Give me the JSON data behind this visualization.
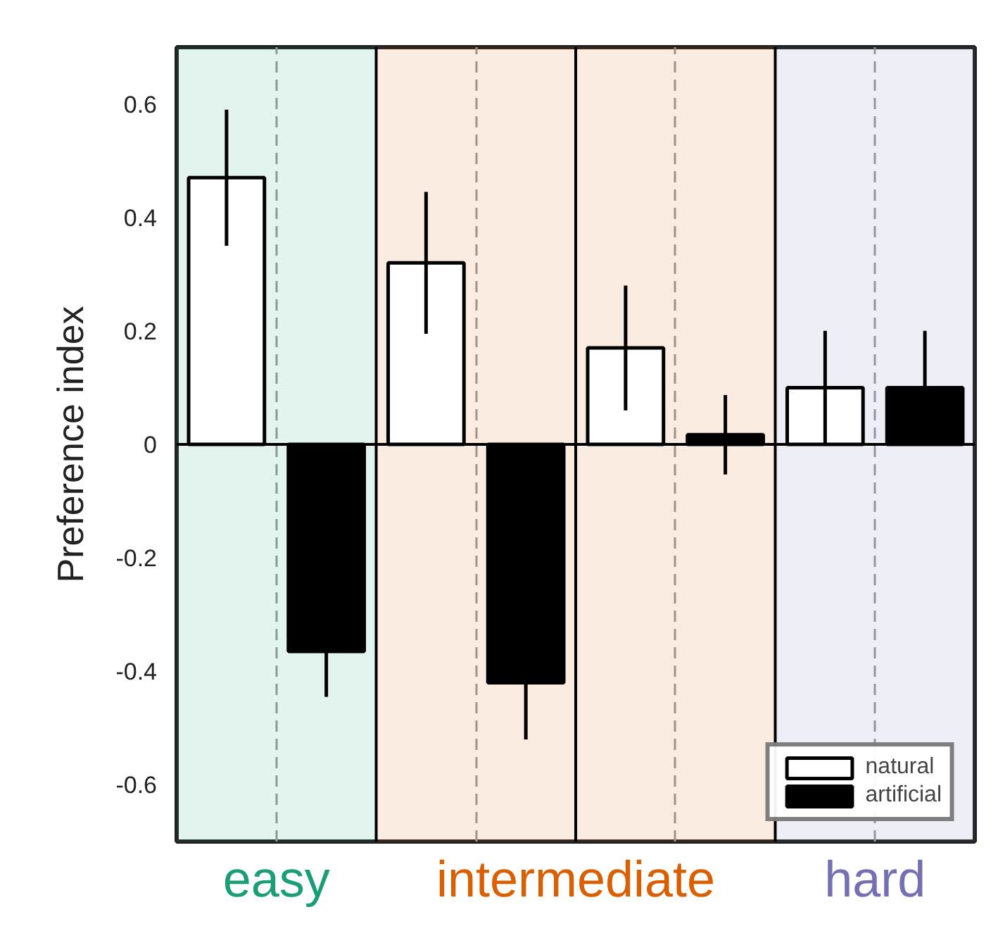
{
  "chart_data": {
    "type": "bar",
    "ylabel": "Preference index",
    "categories": [
      null,
      null,
      null,
      null
    ],
    "series": [
      {
        "name": "natural",
        "color": "#ffffff",
        "values": [
          0.47,
          0.32,
          0.17,
          0.1
        ],
        "errors": [
          0.12,
          0.125,
          0.11,
          0.1
        ]
      },
      {
        "name": "artificial",
        "color": "#000000",
        "values": [
          -0.365,
          -0.42,
          0.017,
          0.1
        ],
        "errors": [
          0.08,
          0.1,
          0.07,
          0.1
        ]
      }
    ],
    "ylim": [
      -0.7,
      0.7
    ],
    "yticks": [
      -0.6,
      -0.4,
      -0.2,
      0,
      0.2,
      0.4,
      0.6
    ],
    "annotations": [
      "easy",
      "intermediate",
      "hard"
    ],
    "ref_lines": [
      {
        "axis": "y",
        "value": 0,
        "color": "#000000",
        "line_style": "solid"
      }
    ],
    "grid": "x",
    "legend": "bottom right"
  }
}
